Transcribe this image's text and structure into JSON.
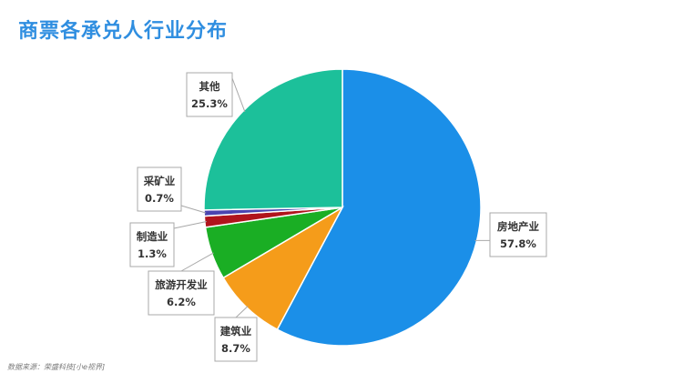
{
  "title": "商票各承兑人行业分布",
  "source": "数据来源：荣盛科技[小e视界]",
  "chart_data": {
    "type": "pie",
    "title": "商票各承兑人行业分布",
    "start_angle_deg": 0,
    "direction": "clockwise",
    "slices": [
      {
        "label": "房地产业",
        "value": 57.8,
        "display": "57.8%",
        "color": "#1b8fe8"
      },
      {
        "label": "建筑业",
        "value": 8.7,
        "display": "8.7%",
        "color": "#f59c1a"
      },
      {
        "label": "旅游开发业",
        "value": 6.2,
        "display": "6.2%",
        "color": "#1aae24"
      },
      {
        "label": "制造业",
        "value": 1.3,
        "display": "1.3%",
        "color": "#b0141c"
      },
      {
        "label": "采矿业",
        "value": 0.7,
        "display": "0.7%",
        "color": "#4a44b0"
      },
      {
        "label": "其他",
        "value": 25.3,
        "display": "25.3%",
        "color": "#1cc09a"
      }
    ]
  }
}
